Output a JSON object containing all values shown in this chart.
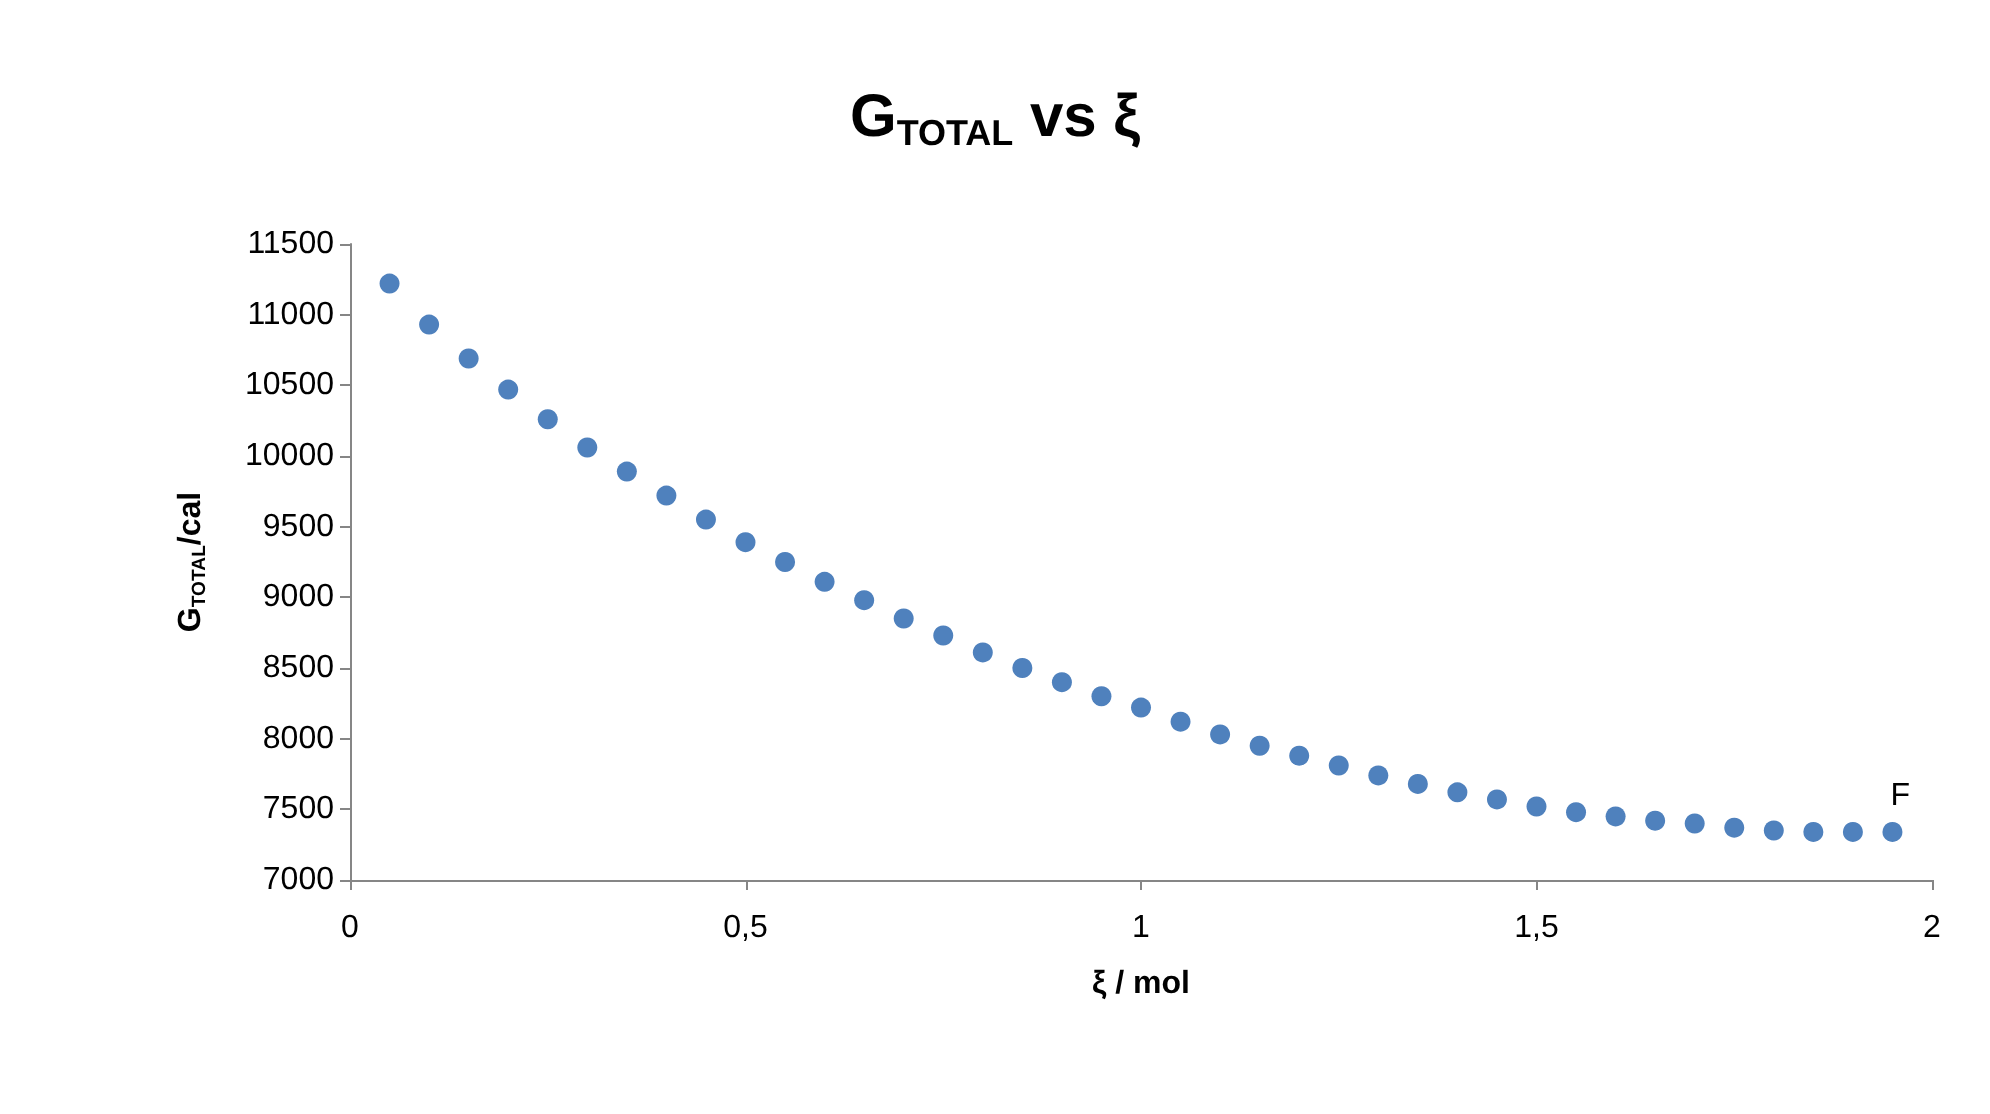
{
  "chart_data": {
    "type": "scatter",
    "title": "G$_{TOTAL}$ vs ξ",
    "xlabel": "ξ / mol",
    "ylabel": "G$_{TOTAL}$/cal",
    "x": [
      0.05,
      0.1,
      0.15,
      0.2,
      0.25,
      0.3,
      0.35,
      0.4,
      0.45,
      0.5,
      0.55,
      0.6,
      0.65,
      0.7,
      0.75,
      0.8,
      0.85,
      0.9,
      0.95,
      1.0,
      1.05,
      1.1,
      1.15,
      1.2,
      1.25,
      1.3,
      1.35,
      1.4,
      1.45,
      1.5,
      1.55,
      1.6,
      1.65,
      1.7,
      1.75,
      1.8,
      1.85,
      1.9,
      1.95
    ],
    "series": [
      {
        "color": "#4f81bd",
        "values": [
          11220,
          10930,
          10690,
          10470,
          10260,
          10060,
          9890,
          9720,
          9550,
          9390,
          9250,
          9110,
          8980,
          8850,
          8730,
          8610,
          8500,
          8400,
          8300,
          8220,
          8120,
          8030,
          7950,
          7880,
          7810,
          7740,
          7680,
          7620,
          7570,
          7520,
          7480,
          7450,
          7420,
          7400,
          7370,
          7350,
          7340,
          7340,
          7340
        ]
      }
    ],
    "marker": "circle",
    "xlim": [
      0,
      2
    ],
    "xticks": [
      0,
      {
        "value": 0.5,
        "label": "0,5"
      },
      1,
      {
        "value": 1.5,
        "label": "1,5"
      },
      2
    ],
    "ylim": [
      7000,
      11500
    ],
    "yticks": [
      7000,
      7500,
      8000,
      8500,
      9000,
      9500,
      10000,
      10500,
      11000,
      11500
    ],
    "annotations": [
      {
        "text": "F",
        "x": 1.95,
        "y": 7340
      }
    ]
  }
}
